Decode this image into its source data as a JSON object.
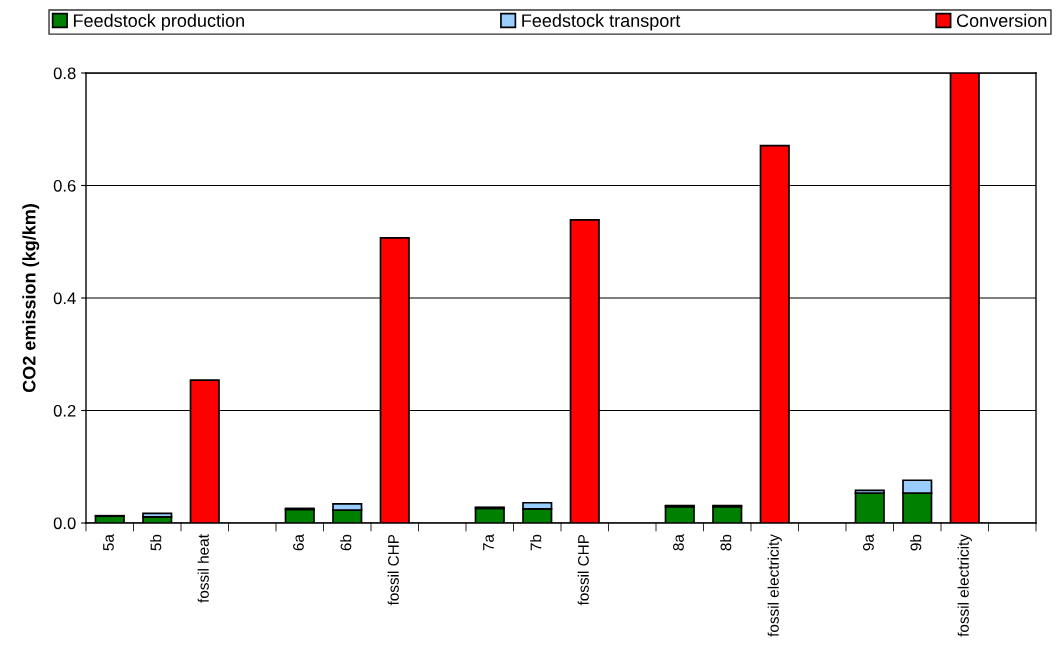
{
  "chart_data": {
    "type": "bar",
    "stacked": true,
    "ylabel": "CO2 emission (kg/km)",
    "categories": [
      "5a",
      "5b",
      "fossil heat",
      null,
      "6a",
      "6b",
      "fossil CHP",
      null,
      "7a",
      "7b",
      "fossil CHP",
      null,
      "8a",
      "8b",
      "fossil electricity",
      null,
      "9a",
      "9b",
      "fossil electricity",
      null
    ],
    "series": [
      {
        "name": "Feedstock production",
        "color": "#008000",
        "values": [
          0.012,
          0.011,
          null,
          null,
          0.024,
          0.023,
          null,
          null,
          0.026,
          0.025,
          null,
          null,
          0.029,
          0.029,
          null,
          null,
          0.053,
          0.053,
          null,
          null
        ]
      },
      {
        "name": "Feedstock transport",
        "color": "#99ccff",
        "values": [
          0.001,
          0.006,
          null,
          null,
          0.002,
          0.011,
          null,
          null,
          0.002,
          0.011,
          null,
          null,
          0.002,
          0.002,
          null,
          null,
          0.005,
          0.023,
          null,
          null
        ]
      },
      {
        "name": "Conversion",
        "color": "#ff0000",
        "values": [
          null,
          null,
          0.254,
          null,
          null,
          null,
          0.507,
          null,
          null,
          null,
          0.539,
          null,
          null,
          null,
          0.671,
          null,
          null,
          null,
          0.8,
          null
        ]
      }
    ],
    "ylim": [
      0,
      0.8
    ],
    "yticks": [
      {
        "value": 0,
        "label": "0.0"
      },
      {
        "value": 0.2,
        "label": "0.2"
      },
      {
        "value": 0.4,
        "label": "0.4"
      },
      {
        "value": 0.6,
        "label": "0.6"
      },
      {
        "value": 0.8,
        "label": "0.8"
      }
    ],
    "grid": "y",
    "legend": "top"
  }
}
